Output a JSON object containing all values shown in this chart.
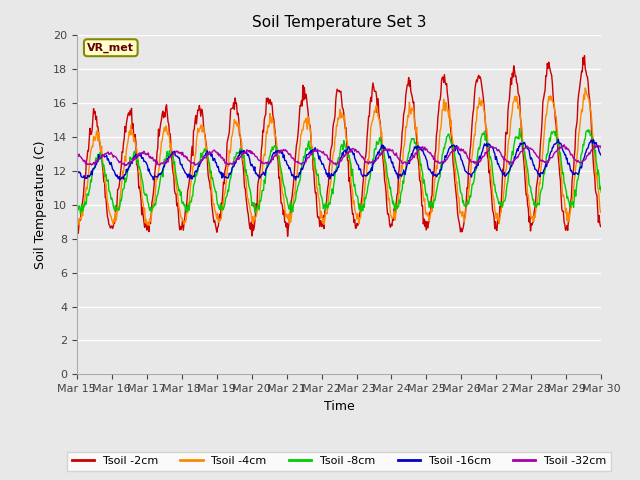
{
  "title": "Soil Temperature Set 3",
  "xlabel": "Time",
  "ylabel": "Soil Temperature (C)",
  "ylim": [
    0,
    20
  ],
  "yticks": [
    0,
    2,
    4,
    6,
    8,
    10,
    12,
    14,
    16,
    18,
    20
  ],
  "background_color": "#e8e8e8",
  "colors": {
    "Tsoil -2cm": "#cc0000",
    "Tsoil -4cm": "#ff8800",
    "Tsoil -8cm": "#00cc00",
    "Tsoil -16cm": "#0000cc",
    "Tsoil -32cm": "#aa00aa"
  },
  "legend_labels": [
    "Tsoil -2cm",
    "Tsoil -4cm",
    "Tsoil -8cm",
    "Tsoil -16cm",
    "Tsoil -32cm"
  ],
  "station_label": "VR_met",
  "x_tick_labels": [
    "Mar 15",
    "Mar 16",
    "Mar 17",
    "Mar 18",
    "Mar 19",
    "Mar 20",
    "Mar 21",
    "Mar 22",
    "Mar 23",
    "Mar 24",
    "Mar 25",
    "Mar 26",
    "Mar 27",
    "Mar 28",
    "Mar 29",
    "Mar 30"
  ],
  "num_days": 15
}
